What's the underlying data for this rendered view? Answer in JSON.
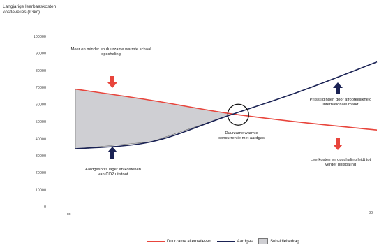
{
  "chart_data": {
    "type": "line",
    "ylabel": "Langjarige leerbaaskosten kostlevelies (/Gkc)",
    "ylim": [
      0,
      100000
    ],
    "ytick_labels": [
      "100000",
      "90000",
      "80000",
      "70000",
      "60000",
      "50000",
      "40000",
      "30000",
      "20000",
      "10000",
      "0"
    ],
    "xlim": [
      0,
      1
    ],
    "xtick_labels": [
      "xx",
      "30"
    ],
    "series": [
      {
        "name": "Douzame alternatieven",
        "color": "#e8453c",
        "x": [
          0,
          0.25,
          0.5,
          0.75,
          1.0
        ],
        "y": [
          69000,
          62500,
          55000,
          49500,
          45000
        ]
      },
      {
        "name": "Aardgas",
        "color": "#1a2254",
        "x": [
          0,
          0.25,
          0.5,
          0.75,
          1.0
        ],
        "y": [
          34000,
          38000,
          53000,
          68000,
          85000
        ]
      }
    ],
    "shaded_area_label": "Subsidiebedrag",
    "shaded_area_color": "#cfcfd3",
    "grid": false,
    "legend_position": "bottom"
  },
  "annotations": {
    "top_left": "Meer en minder en duurzame warmte schaal opschaling",
    "bottom_left": "Aardgasprijs lager en kostenen van CO2 uitstoot",
    "center": "Duurzame warmte concurrentie met aardgas",
    "right_top": "Prijsstijgingen door affootkelijkheid internationale markt",
    "right_bottom": "Leerkosten en opschaling leidt tot verder prijsdaling"
  },
  "legend": {
    "item1": "Duurzame alternatieven",
    "item2": "Aardgas",
    "item3": "Subsidiebedrag"
  },
  "colors": {
    "red_arrow": "#e8453c",
    "navy_arrow": "#1a2254"
  }
}
